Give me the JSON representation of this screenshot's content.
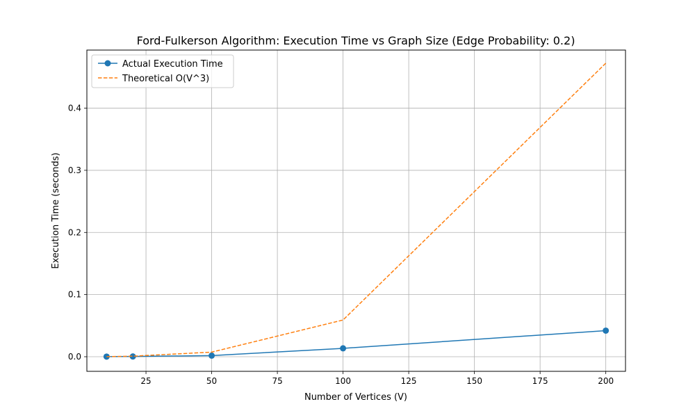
{
  "chart_data": {
    "type": "line",
    "title": "Ford-Fulkerson Algorithm: Execution Time vs Graph Size (Edge Probability: 0.2)",
    "xlabel": "Number of Vertices (V)",
    "ylabel": "Execution Time (seconds)",
    "x": [
      10,
      20,
      50,
      100,
      200
    ],
    "xlim": [
      2.5,
      207.5
    ],
    "ylim": [
      -0.0235,
      0.4935
    ],
    "xticks": [
      25,
      50,
      75,
      100,
      125,
      150,
      175,
      200
    ],
    "xtick_labels": [
      "25",
      "50",
      "75",
      "100",
      "125",
      "150",
      "175",
      "200"
    ],
    "yticks": [
      0.0,
      0.1,
      0.2,
      0.3,
      0.4
    ],
    "ytick_labels": [
      "0.0",
      "0.1",
      "0.2",
      "0.3",
      "0.4"
    ],
    "grid": true,
    "legend_position": "top-left",
    "series": [
      {
        "name": "Actual Execution Time",
        "values": [
          0.0002,
          0.0004,
          0.0018,
          0.0135,
          0.042
        ],
        "color": "#1f77b4",
        "style": "solid",
        "marker": "circle"
      },
      {
        "name": "Theoretical O(V^3)",
        "values": [
          0.0001,
          0.0009,
          0.0074,
          0.0591,
          0.4724
        ],
        "color": "#ff7f0e",
        "style": "dashed",
        "marker": "none"
      }
    ]
  }
}
